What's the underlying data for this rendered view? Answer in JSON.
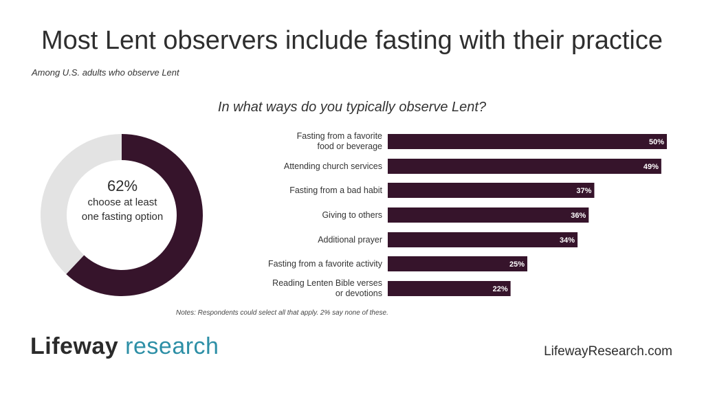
{
  "title": "Most Lent observers include fasting with their practice",
  "subtitle": "Among U.S. adults who observe Lent",
  "colors": {
    "bar": "#36142b",
    "donut_track": "#e3e3e3",
    "logo_accent": "#2d8fa6",
    "label_text": "#ffffff"
  },
  "chart_data": [
    {
      "type": "pie",
      "variant": "donut",
      "values": [
        62,
        38
      ],
      "center_value": "62%",
      "center_caption": "choose at least one fasting option"
    },
    {
      "type": "bar",
      "orientation": "horizontal",
      "title": "In what ways do you typically observe Lent?",
      "categories": [
        "Fasting from a favorite food or beverage",
        "Attending church services",
        "Fasting from a bad habit",
        "Giving to others",
        "Additional prayer",
        "Fasting from a favorite activity",
        "Reading Lenten Bible verses or devotions"
      ],
      "category_lines": [
        [
          "Fasting from a favorite",
          "food or beverage"
        ],
        [
          "Attending church services"
        ],
        [
          "Fasting from a bad habit"
        ],
        [
          "Giving to others"
        ],
        [
          "Additional prayer"
        ],
        [
          "Fasting from a favorite activity"
        ],
        [
          "Reading Lenten Bible verses",
          "or devotions"
        ]
      ],
      "values": [
        50,
        49,
        37,
        36,
        34,
        25,
        22
      ],
      "value_labels": [
        "50%",
        "49%",
        "37%",
        "36%",
        "34%",
        "25%",
        "22%"
      ],
      "xlim": [
        0,
        50
      ]
    }
  ],
  "notes": "Notes: Respondents could select all that apply. 2% say none of these.",
  "logo": {
    "part1": "Lifeway",
    "part2": "research"
  },
  "website": "LifewayResearch.com"
}
